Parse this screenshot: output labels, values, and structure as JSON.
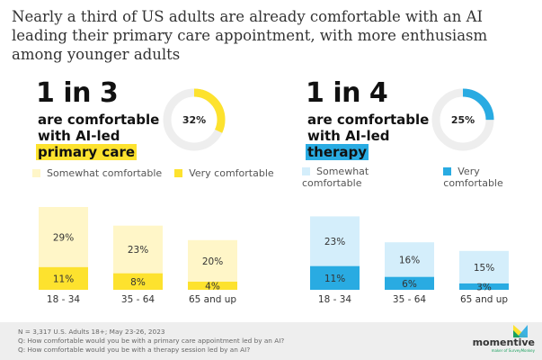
{
  "title": "Nearly a third of US adults are already comfortable with an AI leading their primary care appointment, with more enthusiasm among younger adults",
  "panels": [
    {
      "big": "1 in 3",
      "line1": "are comfortable",
      "line2": "with AI-led",
      "highlight": "primary care",
      "donut_label": "32%",
      "donut_value": 32,
      "color": "#fde22e",
      "light_color": "#fff6c8"
    },
    {
      "big": "1 in 4",
      "line1": "are comfortable",
      "line2": "with AI-led",
      "highlight": "therapy",
      "donut_label": "25%",
      "donut_value": 25,
      "color": "#29abe2",
      "light_color": "#d4eefb"
    }
  ],
  "chart_data": [
    {
      "type": "bar",
      "stacked": true,
      "categories": [
        "18 - 34",
        "35 - 64",
        "65 and up"
      ],
      "series": [
        {
          "name": "Very comfortable",
          "values": [
            11,
            8,
            4
          ],
          "color": "#fde22e"
        },
        {
          "name": "Somewhat comfortable",
          "values": [
            29,
            23,
            20
          ],
          "color": "#fff6c8"
        }
      ],
      "data_labels": [
        [
          "11%",
          "8%",
          "4%"
        ],
        [
          "29%",
          "23%",
          "20%"
        ]
      ],
      "legend": "top"
    },
    {
      "type": "bar",
      "stacked": true,
      "categories": [
        "18 - 34",
        "35 - 64",
        "65 and up"
      ],
      "series": [
        {
          "name": "Very comfortable",
          "values": [
            11,
            6,
            3
          ],
          "color": "#29abe2"
        },
        {
          "name": "Somewhat comfortable",
          "values": [
            23,
            16,
            15
          ],
          "color": "#d4eefb"
        }
      ],
      "data_labels": [
        [
          "11%",
          "6%",
          "3%"
        ],
        [
          "23%",
          "16%",
          "15%"
        ]
      ],
      "legend": "top"
    }
  ],
  "footer": {
    "n": "N = 3,317 U.S. Adults 18+; May 23-26, 2023",
    "q1": "Q: How comfortable would you be with a primary care appointment led by an AI?",
    "q2": "Q: How comfortable would you be with a therapy session led by an AI?",
    "logo": "momentive",
    "logo_sub": "maker of SurveyMonkey"
  }
}
